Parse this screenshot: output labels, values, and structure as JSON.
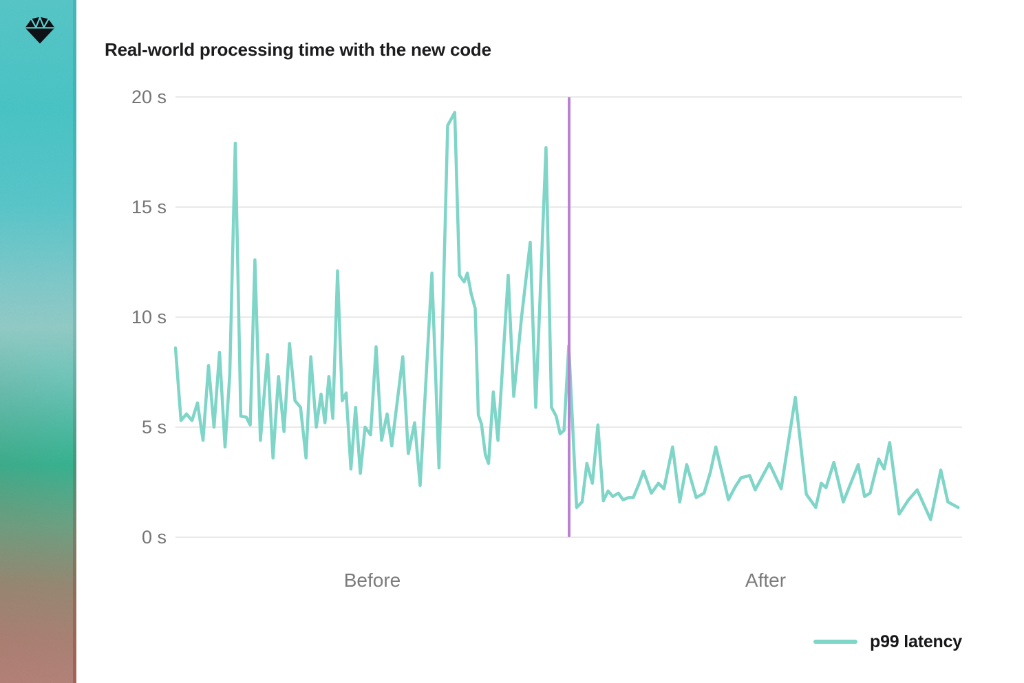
{
  "sidebar": {
    "logo": "diamond-gem-logo"
  },
  "chart_data": {
    "type": "line",
    "title": "Real-world processing time with the new code",
    "xlabel": "",
    "ylabel": "seconds",
    "ylim": [
      0,
      20
    ],
    "grid": true,
    "y_axis": {
      "unit": "s",
      "ticks": [
        {
          "label": "20 s",
          "value": 20
        },
        {
          "label": "15 s",
          "value": 15
        },
        {
          "label": "10 s",
          "value": 10
        },
        {
          "label": "5 s",
          "value": 5
        },
        {
          "label": "0 s",
          "value": 0
        }
      ]
    },
    "x_axis": {
      "section_labels": [
        "Before",
        "After"
      ],
      "divider_x_pct": 50.0
    },
    "legend": {
      "position": "bottom-right",
      "entries": [
        {
          "label": "p99 latency",
          "color": "#7fd5c7"
        }
      ]
    },
    "colors": {
      "line": "#7fd5c7",
      "divider": "#ba81d3",
      "grid": "#e9e9e9",
      "axis_text": "#747474",
      "title_text": "#1c1c1e"
    },
    "series": [
      {
        "name": "p99 latency",
        "x_unit": "percent_of_plot_width",
        "y_unit": "seconds",
        "points": [
          [
            0.0,
            8.6
          ],
          [
            0.7,
            5.3
          ],
          [
            1.4,
            5.6
          ],
          [
            2.1,
            5.3
          ],
          [
            2.8,
            6.1
          ],
          [
            3.5,
            4.4
          ],
          [
            4.2,
            7.8
          ],
          [
            4.9,
            5.0
          ],
          [
            5.6,
            8.4
          ],
          [
            6.3,
            4.1
          ],
          [
            6.9,
            7.4
          ],
          [
            7.6,
            17.9
          ],
          [
            8.3,
            5.5
          ],
          [
            9.0,
            5.45
          ],
          [
            9.5,
            5.1
          ],
          [
            10.1,
            12.6
          ],
          [
            10.8,
            4.4
          ],
          [
            11.7,
            8.3
          ],
          [
            12.4,
            3.6
          ],
          [
            13.1,
            7.3
          ],
          [
            13.8,
            4.8
          ],
          [
            14.5,
            8.8
          ],
          [
            15.2,
            6.2
          ],
          [
            15.9,
            5.9
          ],
          [
            16.6,
            3.6
          ],
          [
            17.2,
            8.2
          ],
          [
            17.9,
            5.0
          ],
          [
            18.5,
            6.5
          ],
          [
            19.0,
            5.2
          ],
          [
            19.5,
            7.3
          ],
          [
            20.0,
            5.4
          ],
          [
            20.6,
            12.1
          ],
          [
            21.2,
            6.2
          ],
          [
            21.7,
            6.55
          ],
          [
            22.3,
            3.1
          ],
          [
            22.9,
            5.9
          ],
          [
            23.5,
            2.9
          ],
          [
            24.1,
            5.0
          ],
          [
            24.8,
            4.65
          ],
          [
            25.5,
            8.65
          ],
          [
            26.2,
            4.4
          ],
          [
            26.9,
            5.6
          ],
          [
            27.5,
            4.15
          ],
          [
            28.9,
            8.2
          ],
          [
            29.6,
            3.8
          ],
          [
            30.4,
            5.2
          ],
          [
            31.1,
            2.35
          ],
          [
            32.6,
            12.0
          ],
          [
            33.5,
            3.15
          ],
          [
            34.6,
            18.7
          ],
          [
            35.5,
            19.3
          ],
          [
            36.1,
            11.9
          ],
          [
            36.7,
            11.6
          ],
          [
            37.1,
            12.0
          ],
          [
            37.6,
            11.05
          ],
          [
            38.1,
            10.4
          ],
          [
            38.5,
            5.55
          ],
          [
            38.9,
            5.15
          ],
          [
            39.4,
            3.75
          ],
          [
            39.8,
            3.35
          ],
          [
            40.4,
            6.6
          ],
          [
            41.0,
            4.4
          ],
          [
            42.3,
            11.9
          ],
          [
            43.0,
            6.4
          ],
          [
            44.0,
            10.0
          ],
          [
            45.1,
            13.4
          ],
          [
            45.8,
            5.9
          ],
          [
            47.1,
            17.7
          ],
          [
            47.8,
            5.9
          ],
          [
            48.4,
            5.5
          ],
          [
            48.9,
            4.7
          ],
          [
            49.4,
            4.85
          ],
          [
            50.0,
            8.7
          ],
          [
            51.0,
            1.35
          ],
          [
            51.7,
            1.6
          ],
          [
            52.3,
            3.35
          ],
          [
            53.0,
            2.45
          ],
          [
            53.7,
            5.1
          ],
          [
            54.4,
            1.65
          ],
          [
            55.0,
            2.1
          ],
          [
            55.6,
            1.85
          ],
          [
            56.3,
            2.0
          ],
          [
            56.9,
            1.7
          ],
          [
            57.6,
            1.8
          ],
          [
            58.2,
            1.8
          ],
          [
            58.9,
            2.4
          ],
          [
            59.5,
            3.0
          ],
          [
            60.5,
            2.0
          ],
          [
            61.4,
            2.45
          ],
          [
            62.1,
            2.2
          ],
          [
            63.2,
            4.1
          ],
          [
            64.1,
            1.6
          ],
          [
            65.0,
            3.3
          ],
          [
            66.2,
            1.8
          ],
          [
            67.2,
            2.0
          ],
          [
            68.0,
            2.95
          ],
          [
            68.7,
            4.1
          ],
          [
            70.3,
            1.7
          ],
          [
            71.1,
            2.25
          ],
          [
            71.9,
            2.7
          ],
          [
            73.0,
            2.8
          ],
          [
            73.7,
            2.15
          ],
          [
            74.6,
            2.75
          ],
          [
            75.5,
            3.35
          ],
          [
            77.0,
            2.2
          ],
          [
            78.8,
            6.35
          ],
          [
            80.2,
            1.95
          ],
          [
            81.4,
            1.35
          ],
          [
            82.1,
            2.45
          ],
          [
            82.7,
            2.25
          ],
          [
            83.7,
            3.4
          ],
          [
            84.9,
            1.6
          ],
          [
            86.8,
            3.3
          ],
          [
            87.6,
            1.85
          ],
          [
            88.3,
            2.0
          ],
          [
            89.4,
            3.55
          ],
          [
            90.1,
            3.1
          ],
          [
            90.8,
            4.3
          ],
          [
            92.0,
            1.05
          ],
          [
            93.2,
            1.7
          ],
          [
            94.3,
            2.15
          ],
          [
            96.0,
            0.8
          ],
          [
            97.3,
            3.05
          ],
          [
            98.2,
            1.6
          ],
          [
            99.5,
            1.35
          ]
        ]
      }
    ]
  }
}
